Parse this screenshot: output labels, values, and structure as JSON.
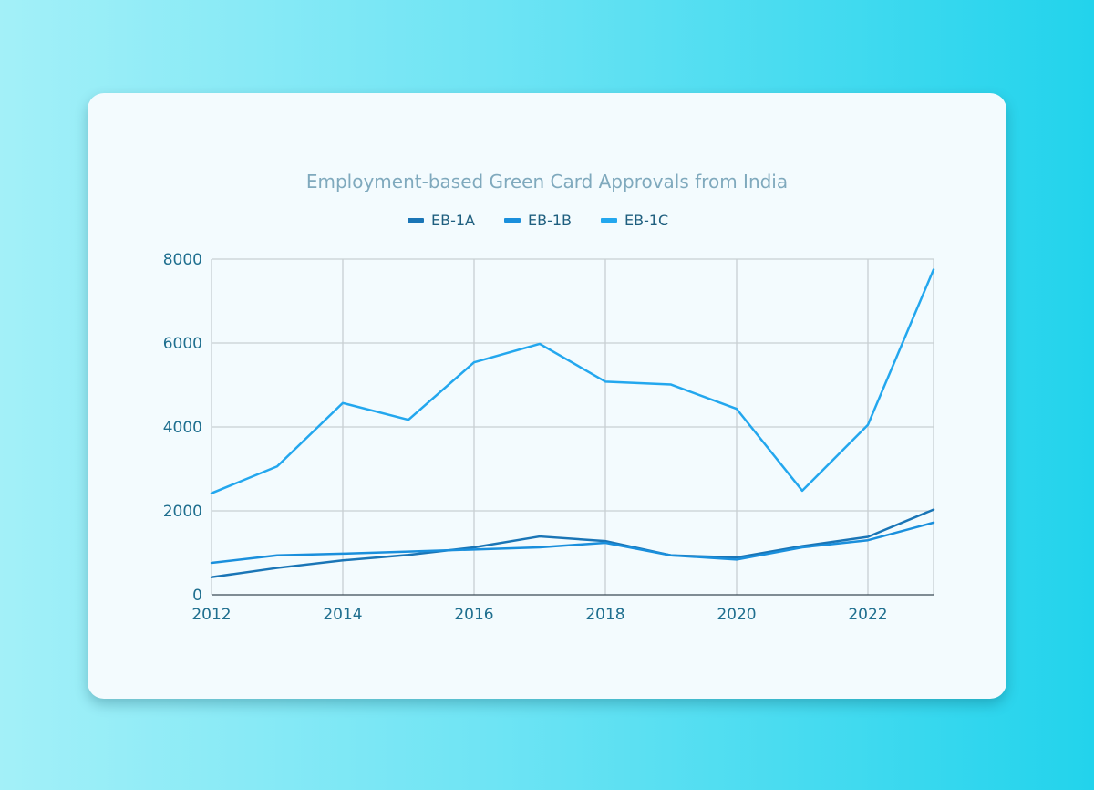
{
  "chart_data": {
    "type": "line",
    "title": "Employment-based Green Card Approvals from India",
    "xlabel": "",
    "ylabel": "",
    "x": [
      2012,
      2013,
      2014,
      2015,
      2016,
      2017,
      2018,
      2019,
      2020,
      2021,
      2022,
      2023
    ],
    "xlim": [
      2012,
      2023
    ],
    "ylim": [
      0,
      8000
    ],
    "x_ticks": [
      2012,
      2014,
      2016,
      2018,
      2020,
      2022
    ],
    "y_ticks": [
      0,
      2000,
      4000,
      6000,
      8000
    ],
    "x_tick_labels": [
      "2012",
      "2014",
      "2016",
      "2018",
      "2020",
      "2022"
    ],
    "y_tick_labels": [
      "0",
      "2000",
      "4000",
      "6000",
      "8000"
    ],
    "grid": true,
    "legend_position": "top-center",
    "series": [
      {
        "name": "EB-1A",
        "color": "#1a75b6",
        "values": [
          420,
          640,
          820,
          950,
          1130,
          1390,
          1280,
          940,
          890,
          1160,
          1380,
          2030
        ]
      },
      {
        "name": "EB-1B",
        "color": "#1a8fdc",
        "values": [
          760,
          940,
          980,
          1030,
          1080,
          1130,
          1240,
          940,
          840,
          1130,
          1300,
          1720
        ]
      },
      {
        "name": "EB-1C",
        "color": "#23a7ee",
        "values": [
          2420,
          3060,
          4570,
          4170,
          5540,
          5980,
          5080,
          5010,
          4430,
          2480,
          4050,
          7750
        ]
      }
    ]
  }
}
